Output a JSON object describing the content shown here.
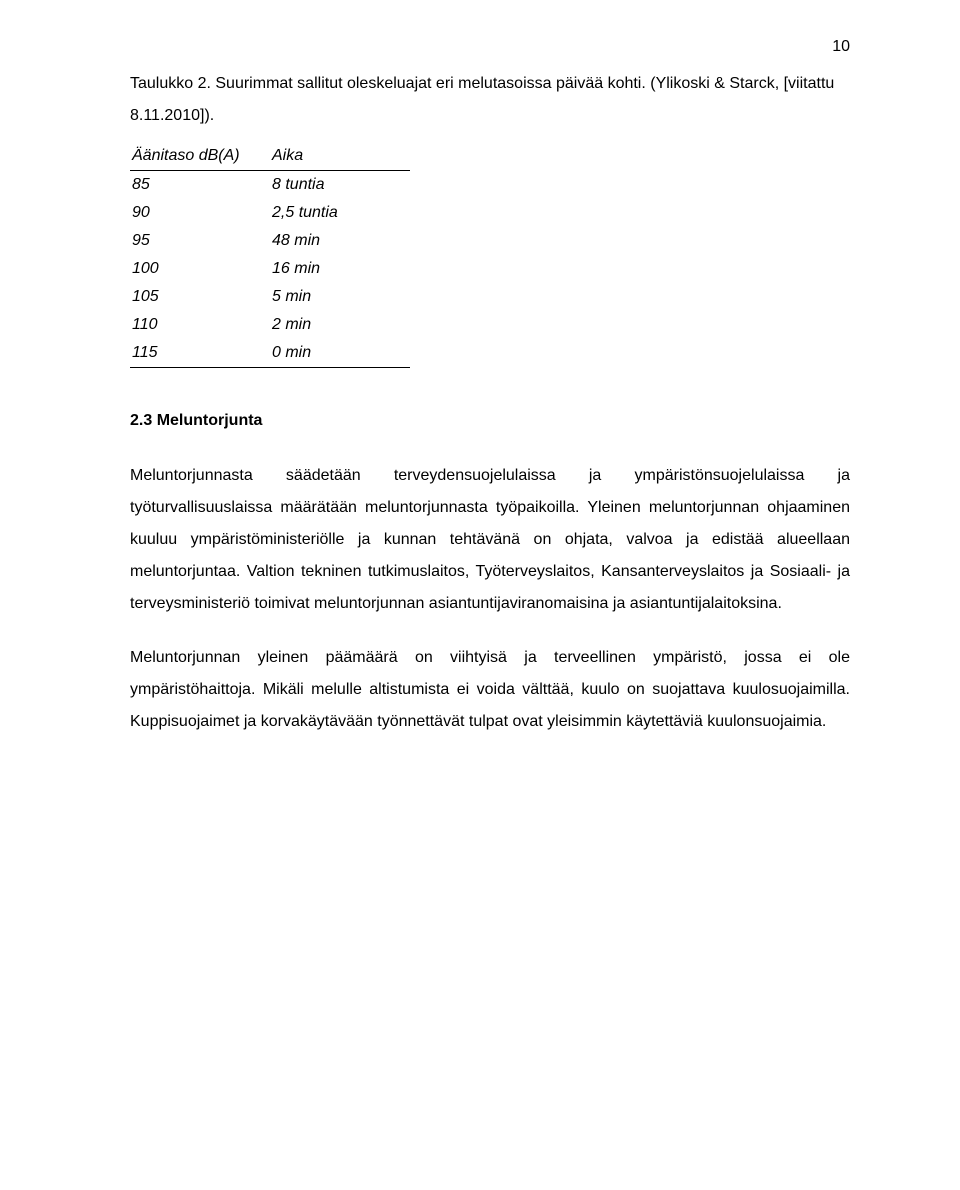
{
  "page_number": "10",
  "caption": "Taulukko 2. Suurimmat sallitut oleskeluajat eri melutasoissa päivää kohti. (Ylikoski & Starck, [viitattu 8.11.2010]).",
  "table": {
    "header_a": "Äänitaso dB(A)",
    "header_b": "Aika",
    "rows": [
      {
        "a": "85",
        "b": "8 tuntia"
      },
      {
        "a": "90",
        "b": "2,5 tuntia"
      },
      {
        "a": "95",
        "b": "48 min"
      },
      {
        "a": "100",
        "b": "16 min"
      },
      {
        "a": "105",
        "b": "5 min"
      },
      {
        "a": "110",
        "b": "2 min"
      },
      {
        "a": "115",
        "b": "0 min"
      }
    ]
  },
  "section_heading": "2.3 Meluntorjunta",
  "para1": "Meluntorjunnasta säädetään terveydensuojelulaissa ja ympäristönsuojelulaissa ja työturvallisuuslaissa määrätään meluntorjunnasta työpaikoilla. Yleinen meluntorjunnan ohjaaminen kuuluu ympäristöministeriölle ja kunnan tehtävänä on ohjata, valvoa ja edistää alueellaan meluntorjuntaa. Valtion tekninen tutkimuslaitos, Työterveyslaitos, Kansanterveyslaitos ja Sosiaali- ja terveysministeriö toimivat meluntorjunnan asiantuntijaviranomaisina ja asiantuntijalaitoksina.",
  "para2": "Meluntorjunnan yleinen päämäärä on viihtyisä ja terveellinen ympäristö, jossa ei ole ympäristöhaittoja. Mikäli melulle altistumista ei voida välttää, kuulo on suojattava kuulosuojaimilla. Kuppisuojaimet ja korvakäytävään työnnettävät tulpat ovat yleisimmin käytettäviä kuulonsuojaimia."
}
